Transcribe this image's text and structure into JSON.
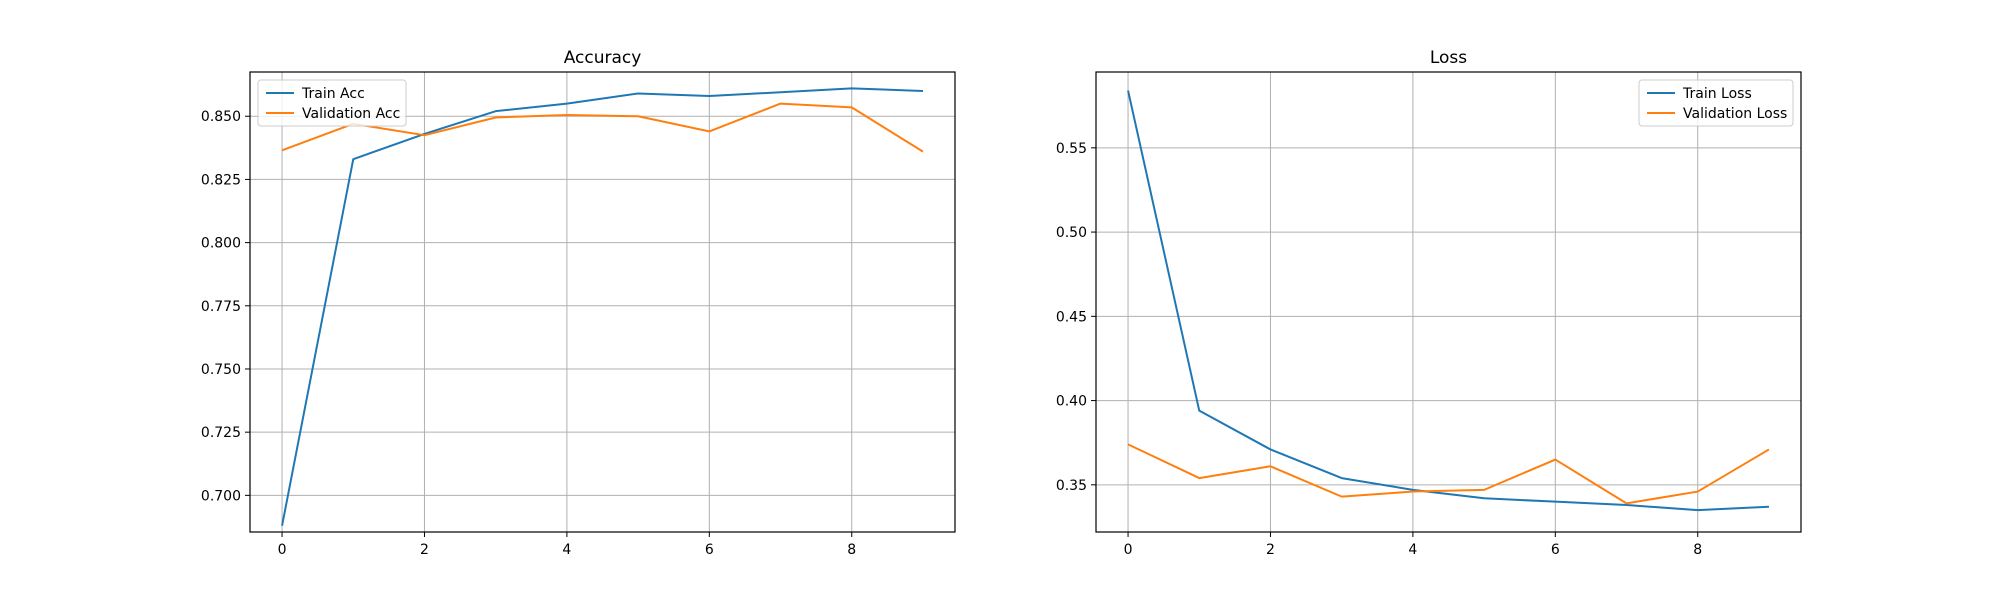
{
  "chart_data": [
    {
      "type": "line",
      "title": "Accuracy",
      "xlabel": "",
      "ylabel": "",
      "x": [
        0,
        1,
        2,
        3,
        4,
        5,
        6,
        7,
        8,
        9
      ],
      "xlim": [
        -0.45,
        9.45
      ],
      "ylim": [
        0.6855,
        0.8675
      ],
      "xticks": [
        0,
        2,
        4,
        6,
        8
      ],
      "yticks": [
        0.7,
        0.725,
        0.75,
        0.775,
        0.8,
        0.825,
        0.85
      ],
      "xtick_labels": [
        "0",
        "2",
        "4",
        "6",
        "8"
      ],
      "ytick_labels": [
        "0.700",
        "0.725",
        "0.750",
        "0.775",
        "0.800",
        "0.825",
        "0.850"
      ],
      "grid": true,
      "legend_position": "upper-left",
      "series": [
        {
          "name": "Train Acc",
          "color": "#1f77b4",
          "values": [
            0.688,
            0.833,
            0.843,
            0.852,
            0.855,
            0.859,
            0.858,
            0.8595,
            0.861,
            0.86
          ]
        },
        {
          "name": "Validation Acc",
          "color": "#ff7f0e",
          "values": [
            0.8365,
            0.847,
            0.8425,
            0.8495,
            0.8505,
            0.85,
            0.844,
            0.855,
            0.8535,
            0.836
          ]
        }
      ]
    },
    {
      "type": "line",
      "title": "Loss",
      "xlabel": "",
      "ylabel": "",
      "x": [
        0,
        1,
        2,
        3,
        4,
        5,
        6,
        7,
        8,
        9
      ],
      "xlim": [
        -0.45,
        9.45
      ],
      "ylim": [
        0.322,
        0.595
      ],
      "xticks": [
        0,
        2,
        4,
        6,
        8
      ],
      "yticks": [
        0.35,
        0.4,
        0.45,
        0.5,
        0.55
      ],
      "xtick_labels": [
        "0",
        "2",
        "4",
        "6",
        "8"
      ],
      "ytick_labels": [
        "0.35",
        "0.40",
        "0.45",
        "0.50",
        "0.55"
      ],
      "grid": true,
      "legend_position": "upper-right",
      "series": [
        {
          "name": "Train Loss",
          "color": "#1f77b4",
          "values": [
            0.584,
            0.394,
            0.371,
            0.354,
            0.347,
            0.342,
            0.34,
            0.338,
            0.335,
            0.337
          ]
        },
        {
          "name": "Validation Loss",
          "color": "#ff7f0e",
          "values": [
            0.374,
            0.354,
            0.361,
            0.343,
            0.346,
            0.347,
            0.365,
            0.339,
            0.346,
            0.371
          ]
        }
      ]
    }
  ]
}
